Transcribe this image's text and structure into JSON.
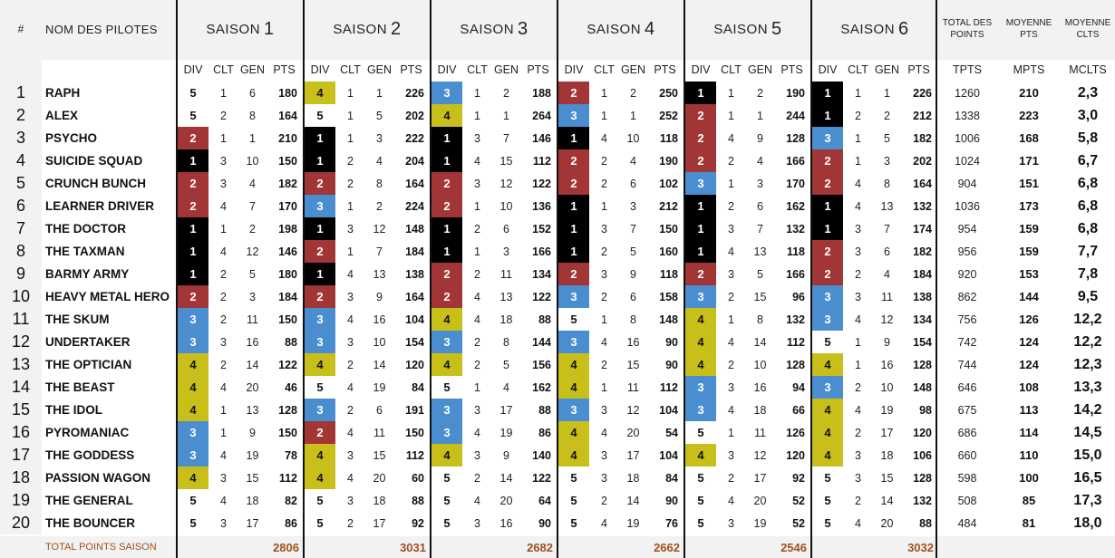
{
  "headers": {
    "num": "#",
    "name": "NOM DES PILOTES",
    "season_prefix": "SAISON",
    "seasons": [
      "1",
      "2",
      "3",
      "4",
      "5",
      "6"
    ],
    "sub_cols": [
      "DIV",
      "CLT",
      "GEN",
      "PTS"
    ],
    "total_points": "TOTAL DES POINTS",
    "moyenne_pts": "MOYENNE PTS",
    "moyenne_clts": "MOYENNE CLTS",
    "tpts": "TPTS",
    "mpts": "MPTS",
    "mclts": "MCLTS"
  },
  "division_colors": {
    "1": {
      "bg": "#000000",
      "fg": "#ffffff"
    },
    "2": {
      "bg": "#a23535",
      "fg": "#ffffff"
    },
    "3": {
      "bg": "#4a8ed0",
      "fg": "#ffffff"
    },
    "4": {
      "bg": "#c9bf1a",
      "fg": "#111111"
    },
    "5": {
      "bg": "#ffffff",
      "fg": "#111111"
    }
  },
  "rows": [
    {
      "n": "1",
      "name": "RAPH",
      "s": [
        [
          "5",
          "1",
          "6",
          "180"
        ],
        [
          "4",
          "1",
          "1",
          "226"
        ],
        [
          "3",
          "1",
          "2",
          "188"
        ],
        [
          "2",
          "1",
          "2",
          "250"
        ],
        [
          "1",
          "1",
          "2",
          "190"
        ],
        [
          "1",
          "1",
          "1",
          "226"
        ]
      ],
      "tpts": "1260",
      "mpts": "210",
      "mclts": "2,3"
    },
    {
      "n": "2",
      "name": "ALEX",
      "s": [
        [
          "5",
          "2",
          "8",
          "164"
        ],
        [
          "5",
          "1",
          "5",
          "202"
        ],
        [
          "4",
          "1",
          "1",
          "264"
        ],
        [
          "3",
          "1",
          "1",
          "252"
        ],
        [
          "2",
          "1",
          "1",
          "244"
        ],
        [
          "1",
          "2",
          "2",
          "212"
        ]
      ],
      "tpts": "1338",
      "mpts": "223",
      "mclts": "3,0"
    },
    {
      "n": "3",
      "name": "PSYCHO",
      "s": [
        [
          "2",
          "1",
          "1",
          "210"
        ],
        [
          "1",
          "1",
          "3",
          "222"
        ],
        [
          "1",
          "3",
          "7",
          "146"
        ],
        [
          "1",
          "4",
          "10",
          "118"
        ],
        [
          "2",
          "4",
          "9",
          "128"
        ],
        [
          "3",
          "1",
          "5",
          "182"
        ]
      ],
      "tpts": "1006",
      "mpts": "168",
      "mclts": "5,8"
    },
    {
      "n": "4",
      "name": "SUICIDE SQUAD",
      "s": [
        [
          "1",
          "3",
          "10",
          "150"
        ],
        [
          "1",
          "2",
          "4",
          "204"
        ],
        [
          "1",
          "4",
          "15",
          "112"
        ],
        [
          "2",
          "2",
          "4",
          "190"
        ],
        [
          "2",
          "2",
          "4",
          "166"
        ],
        [
          "2",
          "1",
          "3",
          "202"
        ]
      ],
      "tpts": "1024",
      "mpts": "171",
      "mclts": "6,7"
    },
    {
      "n": "5",
      "name": "CRUNCH BUNCH",
      "s": [
        [
          "2",
          "3",
          "4",
          "182"
        ],
        [
          "2",
          "2",
          "8",
          "164"
        ],
        [
          "2",
          "3",
          "12",
          "122"
        ],
        [
          "2",
          "2",
          "6",
          "102"
        ],
        [
          "3",
          "1",
          "3",
          "170"
        ],
        [
          "2",
          "4",
          "8",
          "164"
        ]
      ],
      "tpts": "904",
      "mpts": "151",
      "mclts": "6,8"
    },
    {
      "n": "6",
      "name": "LEARNER DRIVER",
      "s": [
        [
          "2",
          "4",
          "7",
          "170"
        ],
        [
          "3",
          "1",
          "2",
          "224"
        ],
        [
          "2",
          "1",
          "10",
          "136"
        ],
        [
          "1",
          "1",
          "3",
          "212"
        ],
        [
          "1",
          "2",
          "6",
          "162"
        ],
        [
          "1",
          "4",
          "13",
          "132"
        ]
      ],
      "tpts": "1036",
      "mpts": "173",
      "mclts": "6,8"
    },
    {
      "n": "7",
      "name": "THE DOCTOR",
      "s": [
        [
          "1",
          "1",
          "2",
          "198"
        ],
        [
          "1",
          "3",
          "12",
          "148"
        ],
        [
          "1",
          "2",
          "6",
          "152"
        ],
        [
          "1",
          "3",
          "7",
          "150"
        ],
        [
          "1",
          "3",
          "7",
          "132"
        ],
        [
          "1",
          "3",
          "7",
          "174"
        ]
      ],
      "tpts": "954",
      "mpts": "159",
      "mclts": "6,8"
    },
    {
      "n": "8",
      "name": "THE TAXMAN",
      "s": [
        [
          "1",
          "4",
          "12",
          "146"
        ],
        [
          "2",
          "1",
          "7",
          "184"
        ],
        [
          "1",
          "1",
          "3",
          "166"
        ],
        [
          "1",
          "2",
          "5",
          "160"
        ],
        [
          "1",
          "4",
          "13",
          "118"
        ],
        [
          "2",
          "3",
          "6",
          "182"
        ]
      ],
      "tpts": "956",
      "mpts": "159",
      "mclts": "7,7"
    },
    {
      "n": "9",
      "name": "BARMY ARMY",
      "s": [
        [
          "1",
          "2",
          "5",
          "180"
        ],
        [
          "1",
          "4",
          "13",
          "138"
        ],
        [
          "2",
          "2",
          "11",
          "134"
        ],
        [
          "2",
          "3",
          "9",
          "118"
        ],
        [
          "2",
          "3",
          "5",
          "166"
        ],
        [
          "2",
          "2",
          "4",
          "184"
        ]
      ],
      "tpts": "920",
      "mpts": "153",
      "mclts": "7,8"
    },
    {
      "n": "10",
      "name": "HEAVY METAL HERO",
      "s": [
        [
          "2",
          "2",
          "3",
          "184"
        ],
        [
          "2",
          "3",
          "9",
          "164"
        ],
        [
          "2",
          "4",
          "13",
          "122"
        ],
        [
          "3",
          "2",
          "6",
          "158"
        ],
        [
          "3",
          "2",
          "15",
          "96"
        ],
        [
          "3",
          "3",
          "11",
          "138"
        ]
      ],
      "tpts": "862",
      "mpts": "144",
      "mclts": "9,5"
    },
    {
      "n": "11",
      "name": "THE SKUM",
      "s": [
        [
          "3",
          "2",
          "11",
          "150"
        ],
        [
          "3",
          "4",
          "16",
          "104"
        ],
        [
          "4",
          "4",
          "18",
          "88"
        ],
        [
          "5",
          "1",
          "8",
          "148"
        ],
        [
          "4",
          "1",
          "8",
          "132"
        ],
        [
          "3",
          "4",
          "12",
          "134"
        ]
      ],
      "tpts": "756",
      "mpts": "126",
      "mclts": "12,2"
    },
    {
      "n": "12",
      "name": "UNDERTAKER",
      "s": [
        [
          "3",
          "3",
          "16",
          "88"
        ],
        [
          "3",
          "3",
          "10",
          "154"
        ],
        [
          "3",
          "2",
          "8",
          "144"
        ],
        [
          "3",
          "4",
          "16",
          "90"
        ],
        [
          "4",
          "4",
          "14",
          "112"
        ],
        [
          "5",
          "1",
          "9",
          "154"
        ]
      ],
      "tpts": "742",
      "mpts": "124",
      "mclts": "12,2"
    },
    {
      "n": "13",
      "name": "THE OPTICIAN",
      "s": [
        [
          "4",
          "2",
          "14",
          "122"
        ],
        [
          "4",
          "2",
          "14",
          "120"
        ],
        [
          "4",
          "2",
          "5",
          "156"
        ],
        [
          "4",
          "2",
          "15",
          "90"
        ],
        [
          "4",
          "2",
          "10",
          "128"
        ],
        [
          "4",
          "1",
          "16",
          "128"
        ]
      ],
      "tpts": "744",
      "mpts": "124",
      "mclts": "12,3"
    },
    {
      "n": "14",
      "name": "THE BEAST",
      "s": [
        [
          "4",
          "4",
          "20",
          "46"
        ],
        [
          "5",
          "4",
          "19",
          "84"
        ],
        [
          "5",
          "1",
          "4",
          "162"
        ],
        [
          "4",
          "1",
          "11",
          "112"
        ],
        [
          "3",
          "3",
          "16",
          "94"
        ],
        [
          "3",
          "2",
          "10",
          "148"
        ]
      ],
      "tpts": "646",
      "mpts": "108",
      "mclts": "13,3"
    },
    {
      "n": "15",
      "name": "THE IDOL",
      "s": [
        [
          "4",
          "1",
          "13",
          "128"
        ],
        [
          "3",
          "2",
          "6",
          "191"
        ],
        [
          "3",
          "3",
          "17",
          "88"
        ],
        [
          "3",
          "3",
          "12",
          "104"
        ],
        [
          "3",
          "4",
          "18",
          "66"
        ],
        [
          "4",
          "4",
          "19",
          "98"
        ]
      ],
      "tpts": "675",
      "mpts": "113",
      "mclts": "14,2"
    },
    {
      "n": "16",
      "name": "PYROMANIAC",
      "s": [
        [
          "3",
          "1",
          "9",
          "150"
        ],
        [
          "2",
          "4",
          "11",
          "150"
        ],
        [
          "3",
          "4",
          "19",
          "86"
        ],
        [
          "4",
          "4",
          "20",
          "54"
        ],
        [
          "5",
          "1",
          "11",
          "126"
        ],
        [
          "4",
          "2",
          "17",
          "120"
        ]
      ],
      "tpts": "686",
      "mpts": "114",
      "mclts": "14,5"
    },
    {
      "n": "17",
      "name": "THE GODDESS",
      "s": [
        [
          "3",
          "4",
          "19",
          "78"
        ],
        [
          "4",
          "3",
          "15",
          "112"
        ],
        [
          "4",
          "3",
          "9",
          "140"
        ],
        [
          "4",
          "3",
          "17",
          "104"
        ],
        [
          "4",
          "3",
          "12",
          "120"
        ],
        [
          "4",
          "3",
          "18",
          "106"
        ]
      ],
      "tpts": "660",
      "mpts": "110",
      "mclts": "15,0"
    },
    {
      "n": "18",
      "name": "PASSION WAGON",
      "s": [
        [
          "4",
          "3",
          "15",
          "112"
        ],
        [
          "4",
          "4",
          "20",
          "60"
        ],
        [
          "5",
          "2",
          "14",
          "122"
        ],
        [
          "5",
          "3",
          "18",
          "84"
        ],
        [
          "5",
          "2",
          "17",
          "92"
        ],
        [
          "5",
          "3",
          "15",
          "128"
        ]
      ],
      "tpts": "598",
      "mpts": "100",
      "mclts": "16,5"
    },
    {
      "n": "19",
      "name": "THE GENERAL",
      "s": [
        [
          "5",
          "4",
          "18",
          "82"
        ],
        [
          "5",
          "3",
          "18",
          "88"
        ],
        [
          "5",
          "4",
          "20",
          "64"
        ],
        [
          "5",
          "2",
          "14",
          "90"
        ],
        [
          "5",
          "4",
          "20",
          "52"
        ],
        [
          "5",
          "2",
          "14",
          "132"
        ]
      ],
      "tpts": "508",
      "mpts": "85",
      "mclts": "17,3"
    },
    {
      "n": "20",
      "name": "THE BOUNCER",
      "s": [
        [
          "5",
          "3",
          "17",
          "86"
        ],
        [
          "5",
          "2",
          "17",
          "92"
        ],
        [
          "5",
          "3",
          "16",
          "90"
        ],
        [
          "5",
          "4",
          "19",
          "76"
        ],
        [
          "5",
          "3",
          "19",
          "52"
        ],
        [
          "5",
          "4",
          "20",
          "88"
        ]
      ],
      "tpts": "484",
      "mpts": "81",
      "mclts": "18,0"
    }
  ],
  "footer": {
    "label": "TOTAL POINTS SAISON",
    "totals": [
      "2806",
      "3031",
      "2682",
      "2662",
      "2546",
      "3032"
    ]
  }
}
